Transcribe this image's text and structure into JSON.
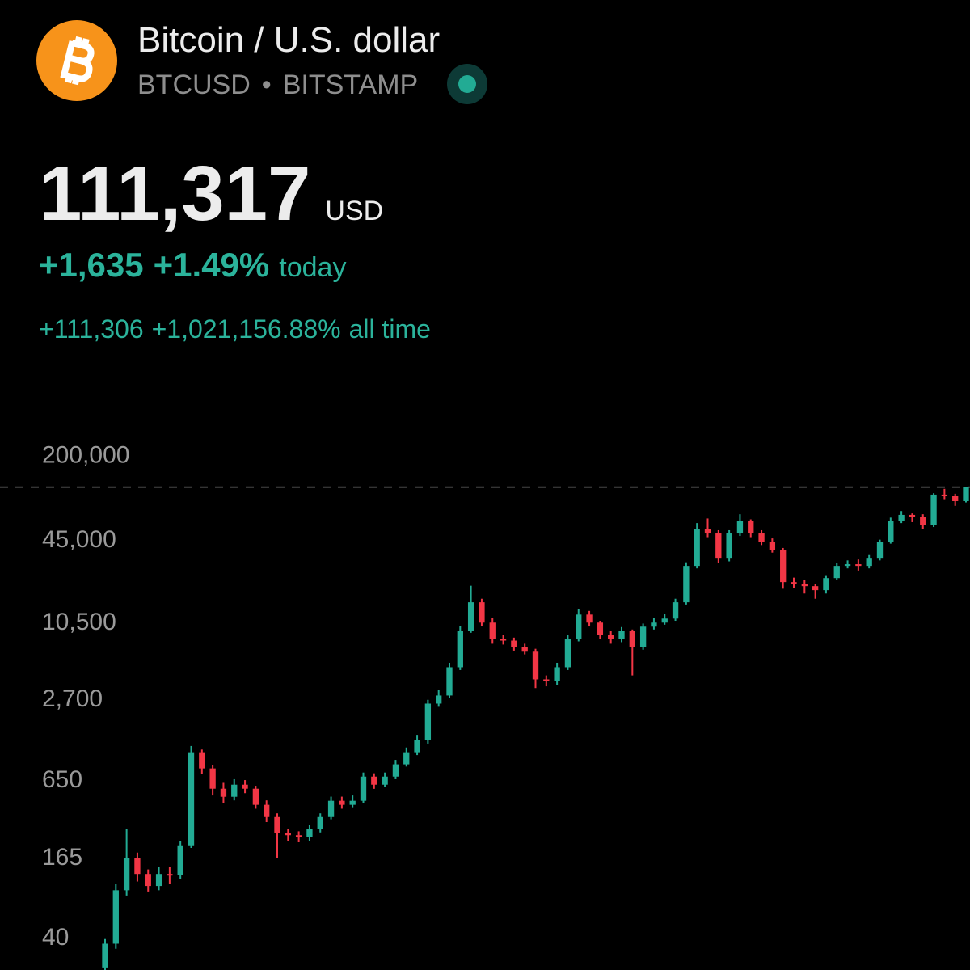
{
  "header": {
    "title": "Bitcoin / U.S. dollar",
    "symbol": "BTCUSD",
    "exchange": "BITSTAMP",
    "price": "111,317",
    "currency": "USD",
    "change_today": "+1,635",
    "change_today_pct": "+1.49%",
    "today_label": "today",
    "change_all": "+111,306",
    "change_all_pct": "+1,021,156.88%",
    "all_time_label": "all time"
  },
  "chart_data": {
    "type": "candlestick",
    "log_scale": true,
    "up_color": "#22ab94",
    "down_color": "#f23645",
    "ylim": [
      22,
      250000
    ],
    "yticks": [
      {
        "value": 40,
        "label": "40"
      },
      {
        "value": 165,
        "label": "165"
      },
      {
        "value": 650,
        "label": "650"
      },
      {
        "value": 2700,
        "label": "2,700"
      },
      {
        "value": 10500,
        "label": "10,500"
      },
      {
        "value": 45000,
        "label": "45,000"
      },
      {
        "value": 200000,
        "label": "200,000"
      }
    ],
    "price_line": 111317,
    "categories": [
      null,
      null,
      null,
      null,
      null,
      null,
      null,
      null,
      null,
      null,
      null,
      null,
      null,
      null,
      null,
      null,
      null,
      null,
      null,
      null,
      null,
      null,
      null,
      null,
      null,
      null,
      null,
      null,
      null,
      null,
      null,
      null,
      null,
      null,
      null,
      null,
      null,
      null,
      null,
      null,
      null,
      null,
      null,
      null,
      null,
      null,
      null,
      null,
      null,
      null,
      null,
      null,
      null,
      null,
      null,
      null,
      null,
      null,
      null,
      null,
      null,
      null,
      null,
      null,
      null,
      null,
      null,
      null,
      null,
      null,
      null,
      null,
      null,
      null,
      null,
      null,
      null,
      null,
      null,
      null,
      null
    ],
    "open": [
      23,
      35,
      90,
      160,
      120,
      97,
      120,
      118,
      199,
      1030,
      774,
      541,
      469,
      581,
      541,
      407,
      328,
      246,
      238,
      229,
      264,
      328,
      437,
      407,
      437,
      670,
      581,
      670,
      832,
      1030,
      1277,
      2431,
      2806,
      4624,
      8810,
      14560,
      10170,
      7640,
      7400,
      6620,
      6170,
      3732,
      3600,
      4624,
      7640,
      11720,
      10170,
      8210,
      7640,
      8810,
      6620,
      9470,
      10170,
      10920,
      14560,
      27680,
      52720,
      49080,
      31920,
      49080,
      60840,
      49080,
      42560,
      36880,
      20800,
      20100,
      19360,
      18040,
      22320,
      27680,
      28520,
      27680,
      31920,
      42560,
      60840,
      68240,
      65320,
      56640,
      97520,
      95000,
      86920
    ],
    "high": [
      38,
      100,
      265,
      175,
      130,
      135,
      135,
      215,
      1150,
      1080,
      820,
      600,
      640,
      630,
      570,
      440,
      350,
      265,
      255,
      285,
      350,
      470,
      470,
      480,
      720,
      710,
      720,
      900,
      1120,
      1400,
      2600,
      3100,
      5000,
      9600,
      19500,
      15500,
      11000,
      8200,
      7800,
      7000,
      6400,
      4000,
      5000,
      8200,
      13000,
      12500,
      10500,
      8800,
      9400,
      9000,
      10000,
      11000,
      11800,
      15500,
      29500,
      59000,
      64000,
      52000,
      52000,
      69000,
      63000,
      52000,
      45000,
      38000,
      22500,
      21500,
      20000,
      23500,
      29000,
      30500,
      31000,
      34000,
      44000,
      65000,
      73000,
      70000,
      69000,
      100000,
      108000,
      99000,
      112000
    ],
    "low": [
      21,
      32,
      82,
      105,
      88,
      90,
      100,
      110,
      190,
      700,
      480,
      420,
      440,
      500,
      380,
      300,
      160,
      215,
      210,
      215,
      250,
      315,
      380,
      390,
      420,
      540,
      560,
      640,
      800,
      980,
      1200,
      2300,
      2700,
      4400,
      8500,
      9500,
      7000,
      6900,
      6200,
      5800,
      3200,
      3300,
      3400,
      4400,
      7300,
      9500,
      7600,
      7000,
      7200,
      4000,
      6300,
      9000,
      9800,
      10500,
      14000,
      26500,
      46000,
      29000,
      30000,
      47000,
      46000,
      40000,
      35000,
      18500,
      18800,
      17000,
      15500,
      17000,
      21500,
      26500,
      25500,
      26500,
      30500,
      41000,
      59000,
      60000,
      53000,
      55000,
      90000,
      80000,
      85000
    ],
    "close": [
      35,
      90,
      160,
      120,
      97,
      120,
      118,
      199,
      1030,
      774,
      541,
      469,
      581,
      541,
      407,
      328,
      246,
      238,
      229,
      264,
      328,
      437,
      407,
      437,
      670,
      581,
      670,
      832,
      1030,
      1277,
      2431,
      2806,
      4624,
      8810,
      14560,
      10170,
      7640,
      7400,
      6620,
      6170,
      3732,
      3600,
      4624,
      7640,
      11720,
      10170,
      8210,
      7640,
      8810,
      6620,
      9470,
      10170,
      10920,
      14560,
      27680,
      52720,
      49080,
      31920,
      49080,
      60840,
      49080,
      42560,
      36880,
      20800,
      20100,
      19360,
      18040,
      22320,
      27680,
      28520,
      27680,
      31920,
      42560,
      60840,
      68240,
      65320,
      56640,
      97520,
      95000,
      86920,
      111317
    ]
  }
}
